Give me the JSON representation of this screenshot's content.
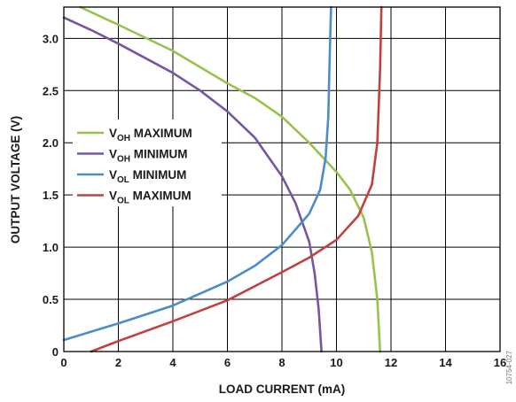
{
  "chart_data": {
    "type": "line",
    "xlabel": "LOAD CURRENT (mA)",
    "ylabel": "OUTPUT VOLTAGE (V)",
    "xlim": [
      0,
      16
    ],
    "ylim": [
      0,
      3.3
    ],
    "x_ticks": [
      "0",
      "2",
      "4",
      "6",
      "8",
      "10",
      "12",
      "14",
      "16"
    ],
    "y_ticks": [
      "0",
      "0.5",
      "1.0",
      "1.5",
      "2.0",
      "2.5",
      "3.0"
    ],
    "y_tick_values": [
      0,
      0.5,
      1.0,
      1.5,
      2.0,
      2.5,
      3.0
    ],
    "grid": true,
    "legend_position": "middle-left",
    "side_note": "10754-027",
    "series": [
      {
        "main": "V",
        "sub": "OH",
        "rest": " MAXIMUM",
        "color": "#99c24d",
        "points": [
          [
            0.6,
            3.3
          ],
          [
            2,
            3.13
          ],
          [
            4,
            2.88
          ],
          [
            6,
            2.57
          ],
          [
            7,
            2.43
          ],
          [
            8,
            2.25
          ],
          [
            9,
            2.0
          ],
          [
            10,
            1.72
          ],
          [
            10.5,
            1.55
          ],
          [
            11,
            1.28
          ],
          [
            11.3,
            0.95
          ],
          [
            11.5,
            0.5
          ],
          [
            11.6,
            0.0
          ]
        ]
      },
      {
        "main": "V",
        "sub": "OH",
        "rest": " MINIMUM",
        "color": "#7656a1",
        "points": [
          [
            0,
            3.2
          ],
          [
            1,
            3.08
          ],
          [
            2,
            2.95
          ],
          [
            3,
            2.81
          ],
          [
            4,
            2.67
          ],
          [
            5,
            2.5
          ],
          [
            6,
            2.3
          ],
          [
            7,
            2.05
          ],
          [
            8,
            1.68
          ],
          [
            8.5,
            1.42
          ],
          [
            9,
            1.05
          ],
          [
            9.2,
            0.75
          ],
          [
            9.35,
            0.4
          ],
          [
            9.45,
            0.0
          ]
        ]
      },
      {
        "main": "V",
        "sub": "OL",
        "rest": " MINIMUM",
        "color": "#4a8dc8",
        "points": [
          [
            0,
            0.11
          ],
          [
            2,
            0.27
          ],
          [
            4,
            0.44
          ],
          [
            6,
            0.67
          ],
          [
            7,
            0.82
          ],
          [
            8,
            1.02
          ],
          [
            9,
            1.32
          ],
          [
            9.4,
            1.55
          ],
          [
            9.6,
            1.85
          ],
          [
            9.7,
            2.25
          ],
          [
            9.75,
            2.8
          ],
          [
            9.8,
            3.3
          ]
        ]
      },
      {
        "main": "V",
        "sub": "OL",
        "rest": " MAXIMUM",
        "color": "#c44040",
        "points": [
          [
            1,
            0.0
          ],
          [
            2,
            0.1
          ],
          [
            4,
            0.29
          ],
          [
            6,
            0.49
          ],
          [
            8,
            0.76
          ],
          [
            9,
            0.9
          ],
          [
            10,
            1.07
          ],
          [
            10.8,
            1.3
          ],
          [
            11.3,
            1.6
          ],
          [
            11.5,
            2.0
          ],
          [
            11.6,
            2.7
          ],
          [
            11.65,
            3.3
          ]
        ]
      }
    ]
  }
}
